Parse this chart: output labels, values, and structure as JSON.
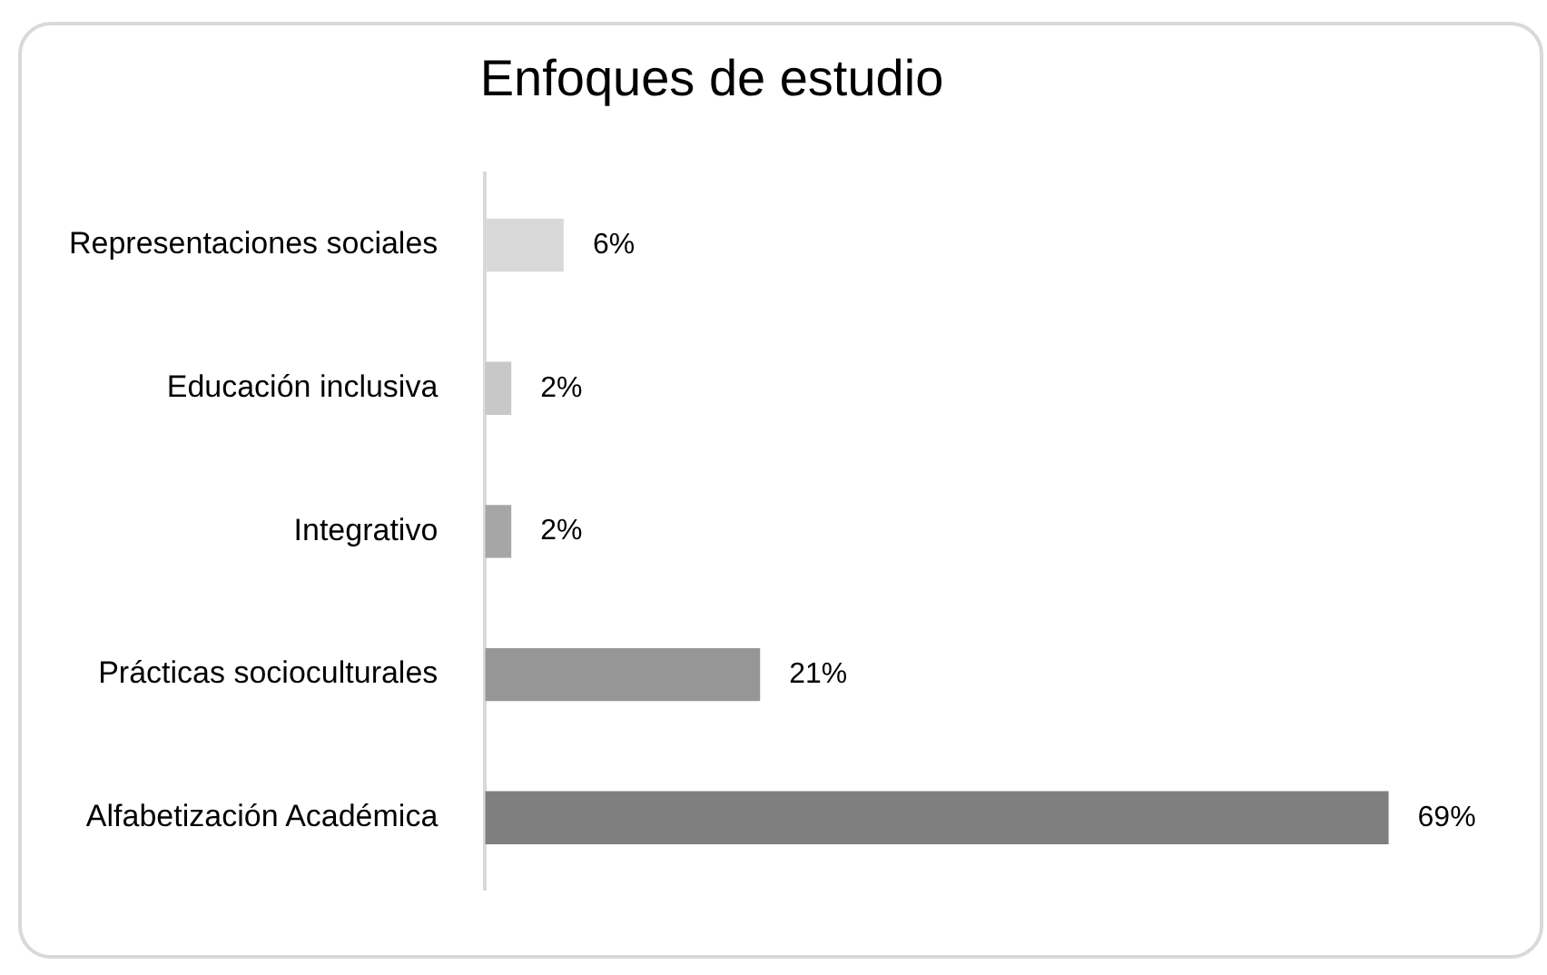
{
  "chart_data": {
    "type": "bar",
    "orientation": "horizontal",
    "title": "Enfoques de estudio",
    "categories": [
      "Representaciones sociales",
      "Educación inclusiva",
      "Integrativo",
      "Prácticas socioculturales",
      "Alfabetización Académica"
    ],
    "values": [
      6,
      2,
      2,
      21,
      69
    ],
    "value_labels": [
      "6%",
      "2%",
      "2%",
      "21%",
      "69%"
    ],
    "colors": [
      "#d9d9d9",
      "#c8c8c8",
      "#a6a6a6",
      "#969696",
      "#7f7f7f"
    ],
    "tick_labels": "y",
    "legend": false
  }
}
